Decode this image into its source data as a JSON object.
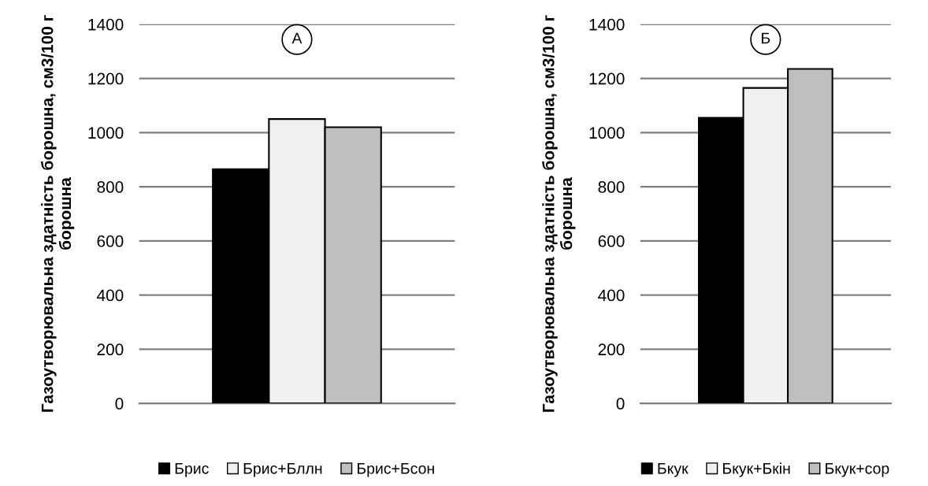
{
  "chart_data": [
    {
      "type": "bar",
      "ylabel": "Газоутворювальна здатність борошна, см3/100 г борошна",
      "annotations": [
        "А"
      ],
      "categories": [
        null
      ],
      "ylim": [
        0,
        1400
      ],
      "yticks": [
        0,
        200,
        400,
        600,
        800,
        1000,
        1200,
        1400
      ],
      "grid": "y",
      "legend": "bottom",
      "series": [
        {
          "name": "Брис",
          "color": "#000000",
          "values": [
            865
          ]
        },
        {
          "name": "Брис+Бллн",
          "color": "#f0f0f0",
          "values": [
            1050
          ]
        },
        {
          "name": "Брис+Бсон",
          "color": "#bfbfbf",
          "values": [
            1020
          ]
        }
      ]
    },
    {
      "type": "bar",
      "ylabel": "Газоутворювальна здатність борошна, см3/100 г борошна",
      "annotations": [
        "Б"
      ],
      "categories": [
        null
      ],
      "ylim": [
        0,
        1400
      ],
      "yticks": [
        0,
        200,
        400,
        600,
        800,
        1000,
        1200,
        1400
      ],
      "grid": "y",
      "legend": "bottom",
      "series": [
        {
          "name": "Бкук",
          "color": "#000000",
          "values": [
            1055
          ]
        },
        {
          "name": "Бкук+Бкін",
          "color": "#f0f0f0",
          "values": [
            1165
          ]
        },
        {
          "name": "Бкук+сор",
          "color": "#bfbfbf",
          "values": [
            1235
          ]
        }
      ]
    }
  ]
}
